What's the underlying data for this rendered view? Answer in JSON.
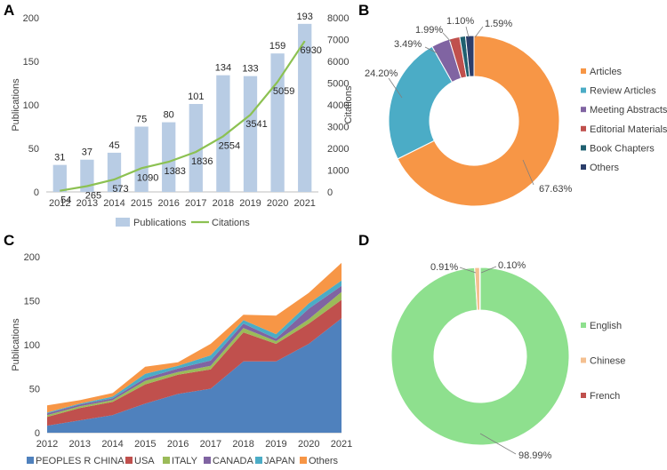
{
  "chart_data": [
    {
      "panel": "A",
      "type": "bar+line",
      "categories": [
        "2012",
        "2013",
        "2014",
        "2015",
        "2016",
        "2017",
        "2018",
        "2019",
        "2020",
        "2021"
      ],
      "series": [
        {
          "name": "Publications",
          "type": "bar",
          "axis": "left",
          "values": [
            31,
            37,
            45,
            75,
            80,
            101,
            134,
            133,
            159,
            193
          ]
        },
        {
          "name": "Citations",
          "type": "line",
          "axis": "right",
          "values": [
            54,
            265,
            573,
            1090,
            1383,
            1836,
            2554,
            3541,
            5059,
            6930
          ]
        }
      ],
      "ylabel": "Publications",
      "y2label": "Citations",
      "ylim": [
        0,
        200
      ],
      "y2lim": [
        0,
        8000
      ],
      "yticks": [
        0,
        50,
        100,
        150,
        200
      ],
      "y2ticks": [
        0,
        1000,
        2000,
        3000,
        4000,
        5000,
        6000,
        7000,
        8000
      ],
      "legend": [
        "Publications",
        "Citations"
      ],
      "colors": {
        "bar": "#b8cce4",
        "line": "#8cc152"
      }
    },
    {
      "panel": "B",
      "type": "pie",
      "donut": true,
      "labels": [
        "Articles",
        "Review Articles",
        "Meeting Abstracts",
        "Editorial Materials",
        "Book Chapters",
        "Others"
      ],
      "values": [
        67.63,
        24.2,
        3.49,
        1.99,
        1.1,
        1.59
      ],
      "value_labels": [
        "67.63%",
        "24.20%",
        "3.49%",
        "1.99%",
        "1.10%",
        "1.59%"
      ],
      "colors": [
        "#f79646",
        "#4bacc6",
        "#8064a2",
        "#c0504d",
        "#1f6070",
        "#2c3e6b"
      ]
    },
    {
      "panel": "C",
      "type": "area",
      "stacked": true,
      "x": [
        "2012",
        "2013",
        "2014",
        "2015",
        "2016",
        "2017",
        "2018",
        "2019",
        "2020",
        "2021"
      ],
      "series": [
        {
          "name": "PEOPLES R CHINA",
          "values": [
            8,
            14,
            20,
            33,
            44,
            50,
            81,
            81,
            101,
            130
          ]
        },
        {
          "name": "USA",
          "values": [
            10,
            14,
            15,
            22,
            22,
            22,
            33,
            20,
            23,
            21
          ]
        },
        {
          "name": "ITALY",
          "values": [
            2,
            2,
            2,
            4,
            3,
            4,
            5,
            3,
            5,
            9
          ]
        },
        {
          "name": "CANADA",
          "values": [
            2,
            2,
            2,
            3,
            4,
            6,
            5,
            3,
            12,
            7
          ]
        },
        {
          "name": "JAPAN",
          "values": [
            1,
            1,
            2,
            5,
            3,
            6,
            4,
            5,
            6,
            6
          ]
        },
        {
          "name": "Others",
          "values": [
            8,
            4,
            4,
            8,
            4,
            13,
            6,
            21,
            12,
            20
          ]
        }
      ],
      "ylabel": "Publications",
      "ylim": [
        0,
        200
      ],
      "yticks": [
        0,
        50,
        100,
        150,
        200
      ],
      "colors": [
        "#4f81bd",
        "#c0504d",
        "#9bbb59",
        "#8064a2",
        "#4bacc6",
        "#f79646"
      ]
    },
    {
      "panel": "D",
      "type": "pie",
      "donut": true,
      "labels": [
        "English",
        "Chinese",
        "French"
      ],
      "values": [
        98.99,
        0.91,
        0.1
      ],
      "value_labels": [
        "98.99%",
        "0.91%",
        "0.10%"
      ],
      "colors": [
        "#8ee08e",
        "#f4c090",
        "#c0504d"
      ]
    }
  ]
}
